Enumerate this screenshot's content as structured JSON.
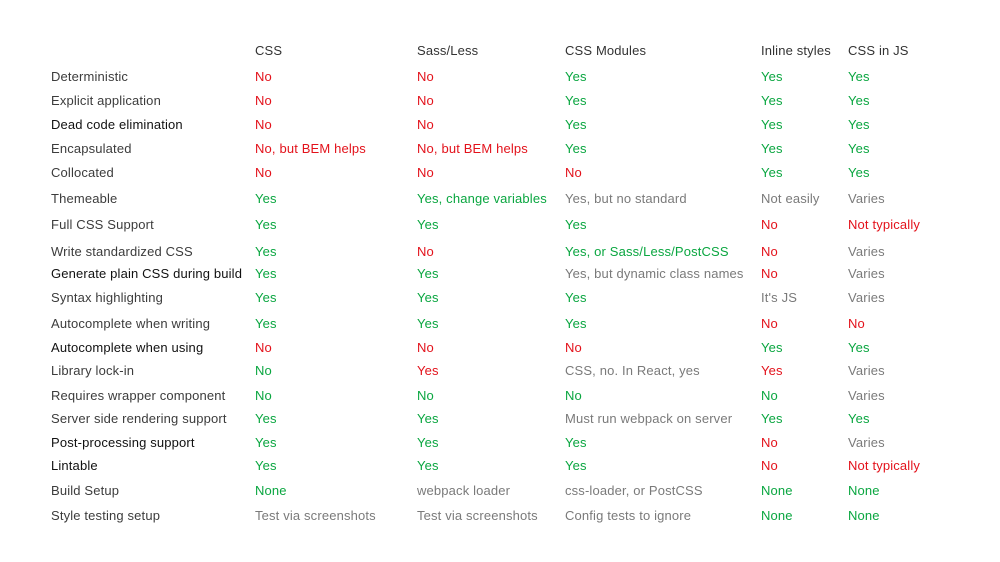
{
  "headers": [
    "CSS",
    "Sass/Less",
    "CSS Modules",
    "Inline styles",
    "CSS in JS"
  ],
  "rows": [
    {
      "label": "Deterministic",
      "label_style": "normal",
      "cells": [
        [
          "No",
          "red"
        ],
        [
          "No",
          "red"
        ],
        [
          "Yes",
          "green"
        ],
        [
          "Yes",
          "green"
        ],
        [
          "Yes",
          "green"
        ]
      ]
    },
    {
      "label": "Explicit application",
      "label_style": "normal",
      "cells": [
        [
          "No",
          "red"
        ],
        [
          "No",
          "red"
        ],
        [
          "Yes",
          "green"
        ],
        [
          "Yes",
          "green"
        ],
        [
          "Yes",
          "green"
        ]
      ]
    },
    {
      "label": "Dead code elimination",
      "label_style": "dark",
      "cells": [
        [
          "No",
          "red"
        ],
        [
          "No",
          "red"
        ],
        [
          "Yes",
          "green"
        ],
        [
          "Yes",
          "green"
        ],
        [
          "Yes",
          "green"
        ]
      ]
    },
    {
      "label": "Encapsulated",
      "label_style": "normal",
      "cells": [
        [
          "No, but BEM helps",
          "red"
        ],
        [
          "No, but BEM helps",
          "red"
        ],
        [
          "Yes",
          "green"
        ],
        [
          "Yes",
          "green"
        ],
        [
          "Yes",
          "green"
        ]
      ]
    },
    {
      "label": "Collocated",
      "label_style": "normal",
      "cells": [
        [
          "No",
          "red"
        ],
        [
          "No",
          "red"
        ],
        [
          "No",
          "red"
        ],
        [
          "Yes",
          "green"
        ],
        [
          "Yes",
          "green"
        ]
      ]
    },
    {
      "label": "Themeable",
      "label_style": "normal",
      "cells": [
        [
          "Yes",
          "green"
        ],
        [
          "Yes, change variables",
          "green"
        ],
        [
          "Yes, but no standard",
          "gray"
        ],
        [
          "Not easily",
          "gray"
        ],
        [
          "Varies",
          "gray"
        ]
      ]
    },
    {
      "label": "Full CSS Support",
      "label_style": "normal",
      "cells": [
        [
          "Yes",
          "green"
        ],
        [
          "Yes",
          "green"
        ],
        [
          "Yes",
          "green"
        ],
        [
          "No",
          "red"
        ],
        [
          "Not typically",
          "red"
        ]
      ]
    },
    {
      "label": "Write standardized CSS",
      "label_style": "normal",
      "cells": [
        [
          "Yes",
          "green"
        ],
        [
          "No",
          "red"
        ],
        [
          "Yes, or Sass/Less/PostCSS",
          "green"
        ],
        [
          "No",
          "red"
        ],
        [
          "Varies",
          "gray"
        ]
      ]
    },
    {
      "label": "Generate plain CSS during build",
      "label_style": "dark",
      "cells": [
        [
          "Yes",
          "green"
        ],
        [
          "Yes",
          "green"
        ],
        [
          "Yes, but dynamic class names",
          "gray"
        ],
        [
          "No",
          "red"
        ],
        [
          "Varies",
          "gray"
        ]
      ]
    },
    {
      "label": "Syntax highlighting",
      "label_style": "normal",
      "cells": [
        [
          "Yes",
          "green"
        ],
        [
          "Yes",
          "green"
        ],
        [
          "Yes",
          "green"
        ],
        [
          "It's JS",
          "gray"
        ],
        [
          "Varies",
          "gray"
        ]
      ]
    },
    {
      "label": "Autocomplete when writing",
      "label_style": "normal",
      "cells": [
        [
          "Yes",
          "green"
        ],
        [
          "Yes",
          "green"
        ],
        [
          "Yes",
          "green"
        ],
        [
          "No",
          "red"
        ],
        [
          "No",
          "red"
        ]
      ]
    },
    {
      "label": "Autocomplete when using",
      "label_style": "dark",
      "cells": [
        [
          "No",
          "red"
        ],
        [
          "No",
          "red"
        ],
        [
          "No",
          "red"
        ],
        [
          "Yes",
          "green"
        ],
        [
          "Yes",
          "green"
        ]
      ]
    },
    {
      "label": "Library lock-in",
      "label_style": "normal",
      "cells": [
        [
          "No",
          "green"
        ],
        [
          "Yes",
          "red"
        ],
        [
          "CSS, no. In React, yes",
          "gray"
        ],
        [
          "Yes",
          "red"
        ],
        [
          "Varies",
          "gray"
        ]
      ]
    },
    {
      "label": "Requires wrapper component",
      "label_style": "normal",
      "cells": [
        [
          "No",
          "green"
        ],
        [
          "No",
          "green"
        ],
        [
          "No",
          "green"
        ],
        [
          "No",
          "green"
        ],
        [
          "Varies",
          "gray"
        ]
      ]
    },
    {
      "label": "Server side rendering support",
      "label_style": "normal",
      "cells": [
        [
          "Yes",
          "green"
        ],
        [
          "Yes",
          "green"
        ],
        [
          "Must run webpack on server",
          "gray"
        ],
        [
          "Yes",
          "green"
        ],
        [
          "Yes",
          "green"
        ]
      ]
    },
    {
      "label": "Post-processing support",
      "label_style": "dark",
      "cells": [
        [
          "Yes",
          "green"
        ],
        [
          "Yes",
          "green"
        ],
        [
          "Yes",
          "green"
        ],
        [
          "No",
          "red"
        ],
        [
          "Varies",
          "gray"
        ]
      ]
    },
    {
      "label": "Lintable",
      "label_style": "dark",
      "cells": [
        [
          "Yes",
          "green"
        ],
        [
          "Yes",
          "green"
        ],
        [
          "Yes",
          "green"
        ],
        [
          "No",
          "red"
        ],
        [
          "Not typically",
          "red"
        ]
      ]
    },
    {
      "label": "Build Setup",
      "label_style": "normal",
      "cells": [
        [
          "None",
          "green"
        ],
        [
          "webpack loader",
          "gray"
        ],
        [
          "css-loader, or PostCSS",
          "gray"
        ],
        [
          "None",
          "green"
        ],
        [
          "None",
          "green"
        ]
      ]
    },
    {
      "label": "Style testing setup",
      "label_style": "normal",
      "cells": [
        [
          "Test via screenshots",
          "gray"
        ],
        [
          "Test via screenshots",
          "gray"
        ],
        [
          "Config tests to ignore",
          "gray"
        ],
        [
          "None",
          "green"
        ],
        [
          "None",
          "green"
        ]
      ]
    }
  ],
  "colors": {
    "red": "#e3121b",
    "green": "#0aa640",
    "gray": "#7a7a7a"
  }
}
